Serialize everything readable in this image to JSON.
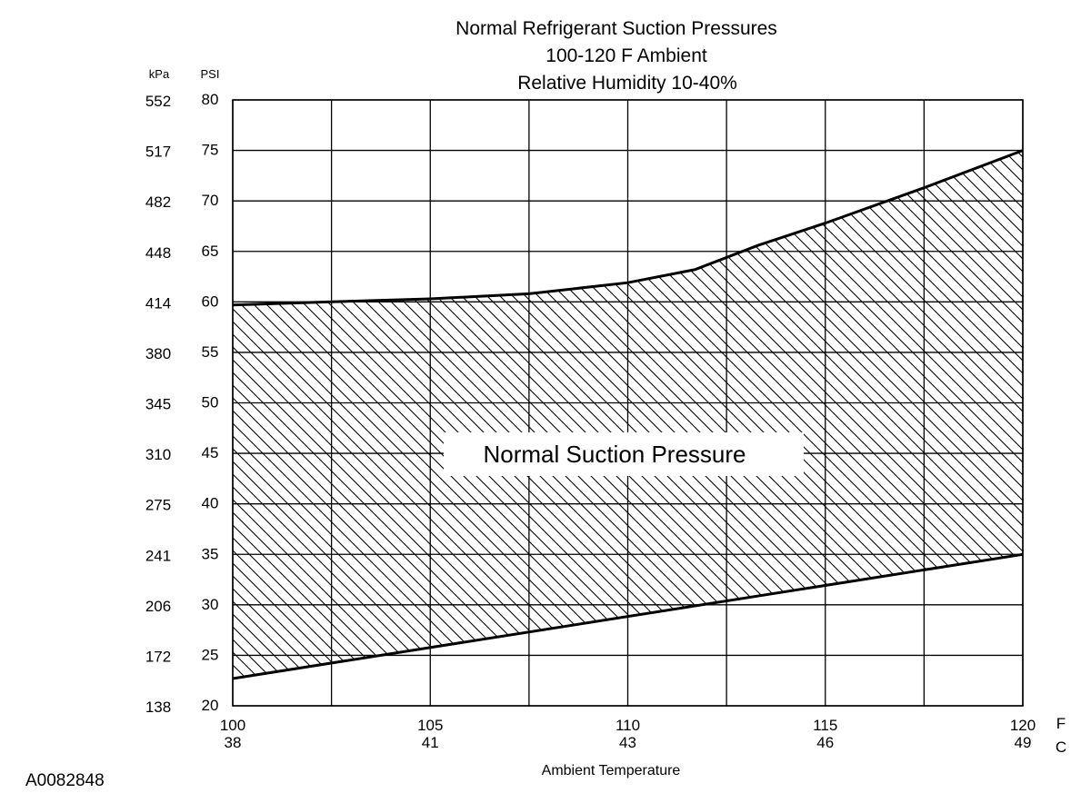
{
  "figure_id": "A0082848",
  "chart_data": {
    "type": "area",
    "title_lines": [
      "Normal  Refrigerant  Suction  Pressures",
      "100-120 F Ambient",
      "Relative Humidity 10-40%"
    ],
    "xlabel": "Ambient Temperature",
    "x_unit_f": "F",
    "x_unit_c": "C",
    "y_unit_psi": "PSI",
    "y_unit_kpa": "kPa",
    "xlim": [
      100,
      120
    ],
    "ylim": [
      20,
      80
    ],
    "x_ticks": [
      {
        "f": "100",
        "c": "38",
        "value": 100
      },
      {
        "f": "105",
        "c": "41",
        "value": 105
      },
      {
        "f": "110",
        "c": "43",
        "value": 110
      },
      {
        "f": "115",
        "c": "46",
        "value": 115
      },
      {
        "f": "120",
        "c": "49",
        "value": 120
      }
    ],
    "x_grid": [
      100,
      102.5,
      105,
      107.5,
      110,
      112.5,
      115,
      117.5,
      120
    ],
    "y_ticks": [
      {
        "psi": "80",
        "kpa": "552",
        "value": 80
      },
      {
        "psi": "75",
        "kpa": "517",
        "value": 75
      },
      {
        "psi": "70",
        "kpa": "482",
        "value": 70
      },
      {
        "psi": "65",
        "kpa": "448",
        "value": 65
      },
      {
        "psi": "60",
        "kpa": "414",
        "value": 60
      },
      {
        "psi": "55",
        "kpa": "380",
        "value": 55
      },
      {
        "psi": "50",
        "kpa": "345",
        "value": 50
      },
      {
        "psi": "45",
        "kpa": "310",
        "value": 45
      },
      {
        "psi": "40",
        "kpa": "275",
        "value": 40
      },
      {
        "psi": "35",
        "kpa": "241",
        "value": 35
      },
      {
        "psi": "30",
        "kpa": "206",
        "value": 30
      },
      {
        "psi": "25",
        "kpa": "172",
        "value": 25
      },
      {
        "psi": "20",
        "kpa": "138",
        "value": 20
      }
    ],
    "region_label": "Normal Suction Pressure",
    "upper_bound": [
      {
        "x": 100,
        "y": 59.7
      },
      {
        "x": 102.5,
        "y": 60.0
      },
      {
        "x": 105,
        "y": 60.3
      },
      {
        "x": 107.5,
        "y": 60.8
      },
      {
        "x": 110,
        "y": 61.9
      },
      {
        "x": 111.7,
        "y": 63.2
      },
      {
        "x": 113.3,
        "y": 65.6
      },
      {
        "x": 115,
        "y": 67.8
      },
      {
        "x": 117.5,
        "y": 71.3
      },
      {
        "x": 120,
        "y": 75.0
      }
    ],
    "lower_bound": [
      {
        "x": 100,
        "y": 22.7
      },
      {
        "x": 120,
        "y": 35.0
      }
    ],
    "colors": {
      "line": "#000000",
      "grid": "#000000",
      "background": "#ffffff"
    }
  }
}
